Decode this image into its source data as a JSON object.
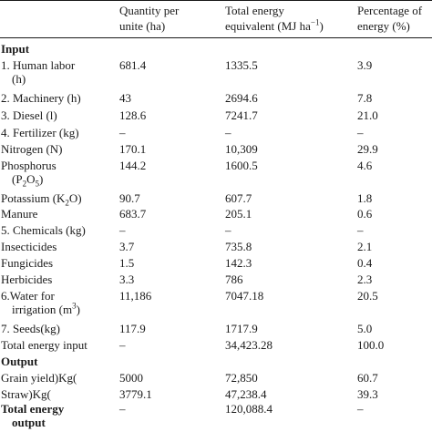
{
  "table": {
    "header": {
      "quantity_line1": "Quantity per",
      "quantity_line2": "unite (ha)",
      "energy_line1": "Total energy",
      "energy_line2_prefix": "equivalent (MJ ha",
      "energy_line2_sup": "−1",
      "energy_line2_suffix": ")",
      "percent_line1": "Percentage of",
      "percent_line2": "energy (%)"
    },
    "sections": {
      "input": "Input",
      "output": "Output"
    },
    "rows": [
      {
        "label": "1. Human labor",
        "label2": "(h)",
        "quantity": "681.4",
        "energy": "1335.5",
        "percent": "3.9"
      },
      {
        "label": "2. Machinery (h)",
        "quantity": "43",
        "energy": "2694.6",
        "percent": "7.8"
      },
      {
        "label": "3. Diesel (l)",
        "quantity": "128.6",
        "energy": "7241.7",
        "percent": "21.0"
      },
      {
        "label": "4. Fertilizer (kg)",
        "quantity": "–",
        "energy": "–",
        "percent": "–"
      },
      {
        "label": "Nitrogen (N)",
        "quantity": "170.1",
        "energy": "10,309",
        "percent": "29.9"
      },
      {
        "label": "Phosphorus",
        "label2_prefix": "(P",
        "label2_sub1": "2",
        "label2_mid": "O",
        "label2_sub2": "5",
        "label2_suffix": ")",
        "quantity": "144.2",
        "energy": "1600.5",
        "percent": "4.6"
      },
      {
        "label_prefix": "Potassium (K",
        "label_sub": "2",
        "label_suffix": "O)",
        "quantity": "90.7",
        "energy": "607.7",
        "percent": "1.8"
      },
      {
        "label": "Manure",
        "quantity": "683.7",
        "energy": "205.1",
        "percent": "0.6"
      },
      {
        "label": "5. Chemicals (kg)",
        "quantity": "–",
        "energy": "–",
        "percent": "–"
      },
      {
        "label": "Insecticides",
        "quantity": "3.7",
        "energy": "735.8",
        "percent": "2.1"
      },
      {
        "label": "Fungicides",
        "quantity": "1.5",
        "energy": "142.3",
        "percent": "0.4"
      },
      {
        "label": "Herbicides",
        "quantity": "3.3",
        "energy": "786",
        "percent": "2.3"
      },
      {
        "label": "6.Water for",
        "label2_prefix": "irrigation (m",
        "label2_sup": "3",
        "label2_suffix": ")",
        "quantity": "11,186",
        "energy": "7047.18",
        "percent": "20.5"
      },
      {
        "label": "7. Seeds(kg)",
        "quantity": "117.9",
        "energy": "1717.9",
        "percent": "5.0"
      },
      {
        "label": "Total energy input",
        "quantity": "–",
        "energy": "34,423.28",
        "percent": "100.0"
      },
      {
        "label": "Grain yield)Kg(",
        "quantity": "5000",
        "energy": "72,850",
        "percent": "60.7"
      },
      {
        "label": "Straw)Kg(",
        "quantity": "3779.1",
        "energy": "47,238.4",
        "percent": "39.3"
      },
      {
        "label": "Total energy",
        "label2": "output",
        "quantity": "–",
        "energy": "120,088.4",
        "percent": "–"
      }
    ]
  }
}
